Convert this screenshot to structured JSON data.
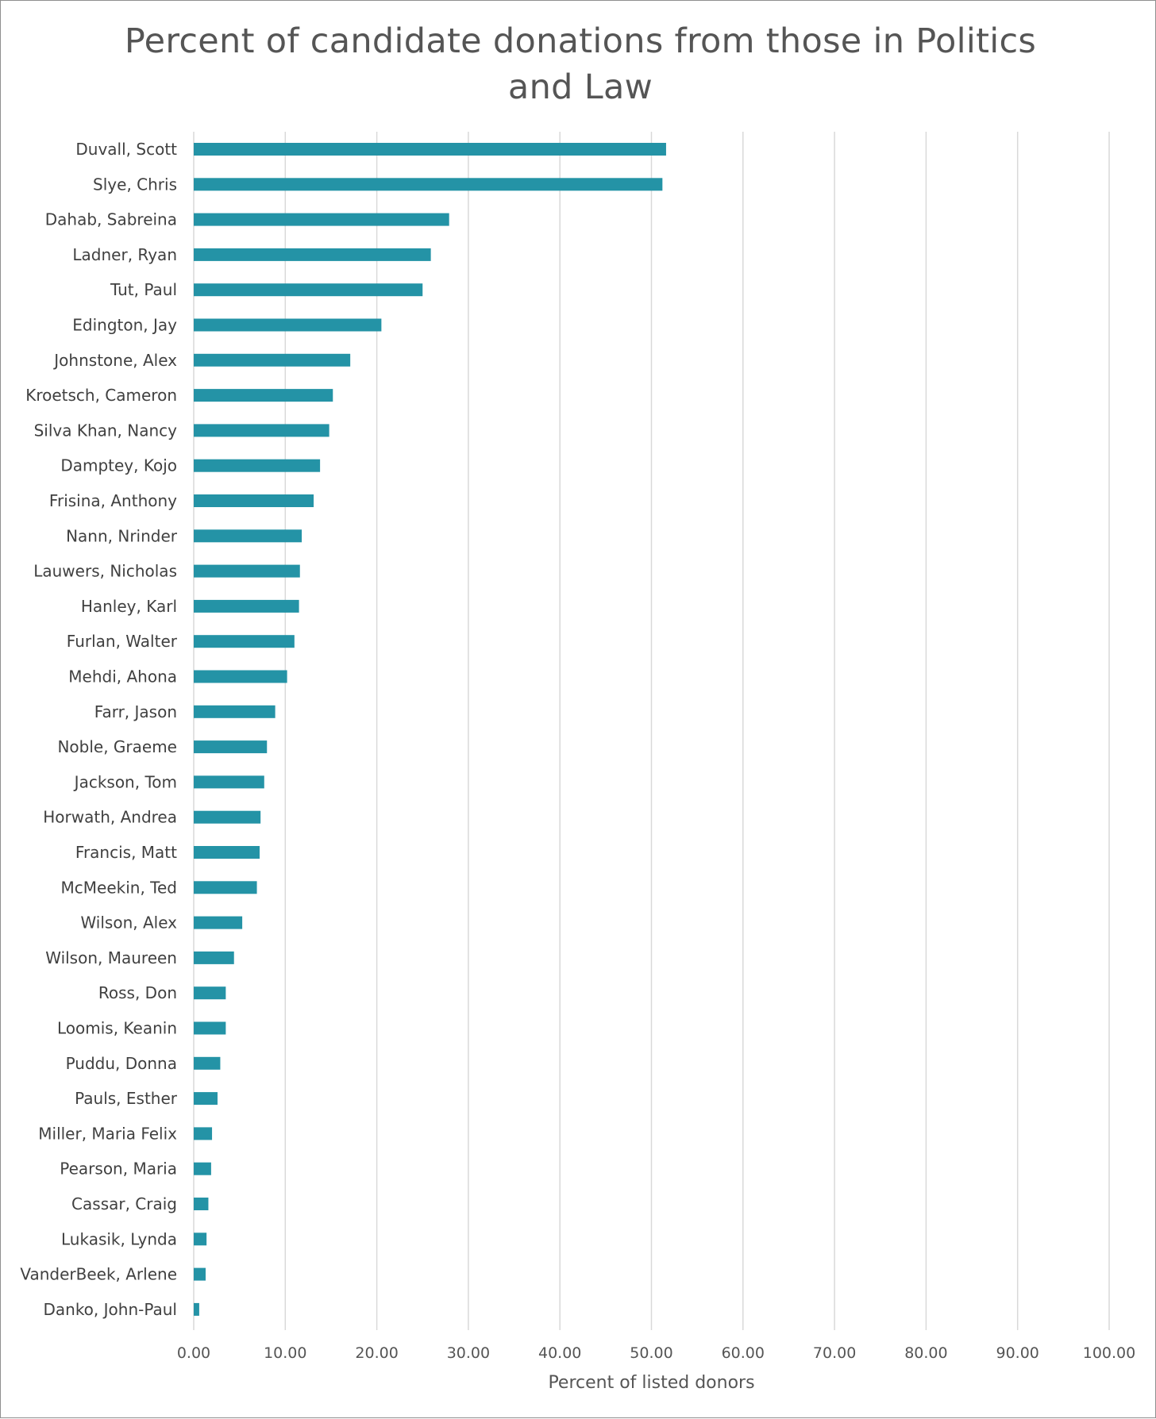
{
  "chart_data": {
    "type": "bar",
    "orientation": "horizontal",
    "title": "Percent of candidate donations from those in Politics and Law",
    "xlabel": "Percent of listed donors",
    "ylabel": "",
    "xlim": [
      0,
      100
    ],
    "x_ticks": [
      "0.00",
      "10.00",
      "20.00",
      "30.00",
      "40.00",
      "50.00",
      "60.00",
      "70.00",
      "80.00",
      "90.00",
      "100.00"
    ],
    "grid": true,
    "legend": "none",
    "bar_color": "#2493a6",
    "categories": [
      "Duvall, Scott",
      "Slye, Chris",
      "Dahab, Sabreina",
      "Ladner, Ryan",
      "Tut, Paul",
      "Edington, Jay",
      "Johnstone, Alex",
      "Kroetsch, Cameron",
      "Silva Khan, Nancy",
      "Damptey, Kojo",
      "Frisina, Anthony",
      "Nann, Nrinder",
      "Lauwers, Nicholas",
      "Hanley, Karl",
      "Furlan, Walter",
      "Mehdi, Ahona",
      "Farr, Jason",
      "Noble, Graeme",
      "Jackson, Tom",
      "Horwath, Andrea",
      "Francis, Matt",
      "McMeekin, Ted",
      "Wilson, Alex",
      "Wilson, Maureen",
      "Ross, Don",
      "Loomis, Keanin",
      "Puddu, Donna",
      "Pauls, Esther",
      "Miller, Maria Felix",
      "Pearson, Maria",
      "Cassar, Craig",
      "Lukasik, Lynda",
      "VanderBeek, Arlene",
      "Danko, John-Paul"
    ],
    "values": [
      51.6,
      51.2,
      27.9,
      25.9,
      25.0,
      20.5,
      17.1,
      15.2,
      14.8,
      13.8,
      13.1,
      11.8,
      11.6,
      11.5,
      11.0,
      10.2,
      8.9,
      8.0,
      7.7,
      7.3,
      7.2,
      6.9,
      5.3,
      4.4,
      3.5,
      3.5,
      2.9,
      2.6,
      2.0,
      1.9,
      1.6,
      1.4,
      1.3,
      0.6
    ]
  }
}
